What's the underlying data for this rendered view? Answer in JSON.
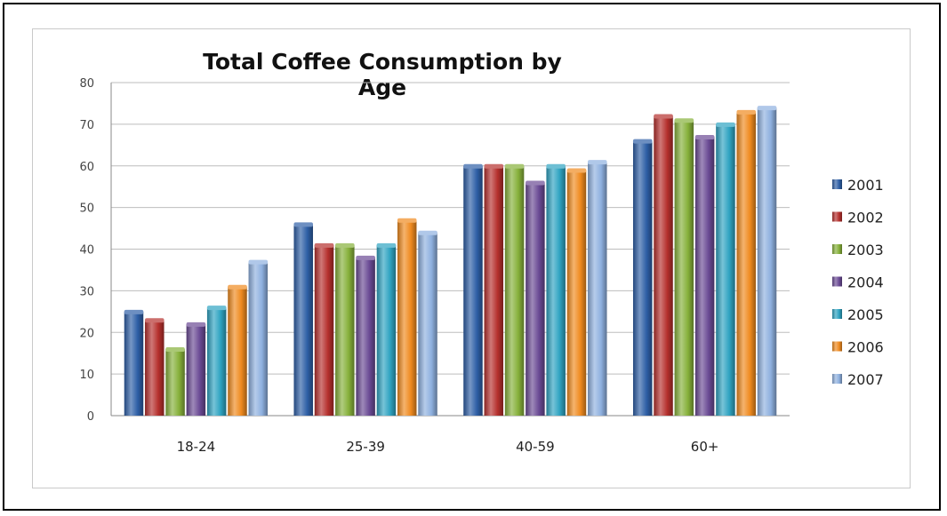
{
  "chart_data": {
    "type": "bar",
    "title": "Total Coffee Consumption by Age",
    "xlabel": "",
    "ylabel": "",
    "ylim": [
      0,
      80
    ],
    "yticks": [
      0,
      10,
      20,
      30,
      40,
      50,
      60,
      70,
      80
    ],
    "grid": true,
    "legend_position": "right",
    "categories": [
      "18-24",
      "25-39",
      "40-59",
      "60+"
    ],
    "series": [
      {
        "name": "2001",
        "color": "#2e5fa6",
        "values": [
          25,
          46,
          60,
          66
        ]
      },
      {
        "name": "2002",
        "color": "#b5302d",
        "values": [
          23,
          41,
          60,
          72
        ]
      },
      {
        "name": "2003",
        "color": "#86b03a",
        "values": [
          16,
          41,
          60,
          71
        ]
      },
      {
        "name": "2004",
        "color": "#6a4a94",
        "values": [
          22,
          38,
          56,
          67
        ]
      },
      {
        "name": "2005",
        "color": "#2ea3c1",
        "values": [
          26,
          41,
          60,
          70
        ]
      },
      {
        "name": "2006",
        "color": "#ef8a1f",
        "values": [
          31,
          47,
          59,
          73
        ]
      },
      {
        "name": "2007",
        "color": "#8eb0df",
        "values": [
          37,
          44,
          61,
          74
        ]
      }
    ]
  }
}
